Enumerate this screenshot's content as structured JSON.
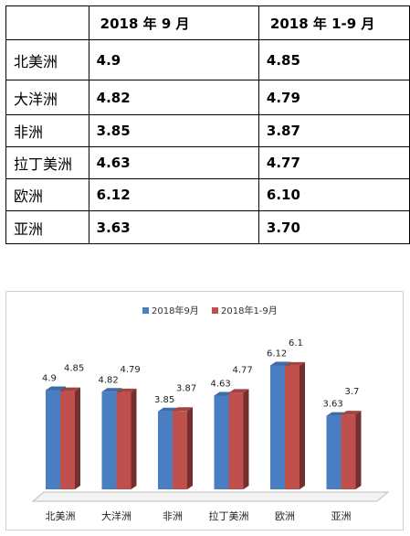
{
  "table": {
    "headers": [
      "",
      "2018 年 9 月",
      "2018 年 1-9 月"
    ],
    "rows": [
      {
        "region": "北美洲",
        "sep": "4.9",
        "ytd": "4.85"
      },
      {
        "region": "大洋洲",
        "sep": "4.82",
        "ytd": "4.79"
      },
      {
        "region": "非洲",
        "sep": "3.85",
        "ytd": "3.87"
      },
      {
        "region": "拉丁美洲",
        "sep": "4.63",
        "ytd": "4.77"
      },
      {
        "region": "欧洲",
        "sep": "6.12",
        "ytd": "6.10"
      },
      {
        "region": "亚洲",
        "sep": "3.63",
        "ytd": "3.70"
      }
    ]
  },
  "chart_data": {
    "type": "bar",
    "categories": [
      "北美洲",
      "大洋洲",
      "非洲",
      "拉丁美洲",
      "欧洲",
      "亚洲"
    ],
    "series": [
      {
        "name": "2018年9月",
        "values": [
          4.9,
          4.82,
          3.85,
          4.63,
          6.12,
          3.63
        ],
        "labels": [
          "4.9",
          "4.82",
          "3.85",
          "4.63",
          "6.12",
          "3.63"
        ],
        "color": "#4a7ec3"
      },
      {
        "name": "2018年1-9月",
        "values": [
          4.85,
          4.79,
          3.87,
          4.77,
          6.1,
          3.7
        ],
        "labels": [
          "4.85",
          "4.79",
          "3.87",
          "4.77",
          "6.1",
          "3.7"
        ],
        "color": "#c0504d"
      }
    ],
    "ylim": [
      0,
      7
    ],
    "legend": "top",
    "grid": false,
    "style": "3d-column"
  }
}
